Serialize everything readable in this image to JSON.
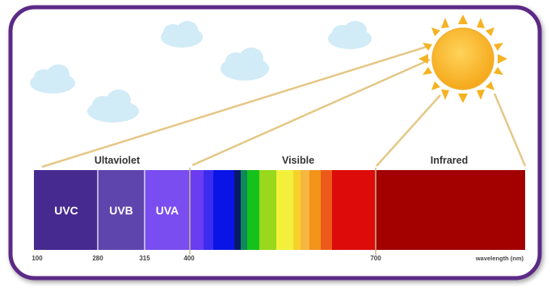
{
  "labels": {
    "ultraviolet": "Ultaviolet",
    "visible": "Visible",
    "infrared": "Infrared"
  },
  "bands": {
    "uvc": "UVC",
    "uvb": "UVB",
    "uva": "UVA"
  },
  "ticks": [
    "100",
    "280",
    "315",
    "400",
    "700"
  ],
  "axis_label": "wavelength (nm)",
  "colors": {
    "frame": "#5b2a86",
    "uvc": "#472a8f",
    "uvb": "#5e45ad",
    "uva": "#7a4df0",
    "infrared": "#a30000",
    "sun": "#f5b223",
    "ray": "#e2c27a",
    "cloud": "#cde9f7"
  },
  "icons": [
    "sun-icon",
    "cloud-icon"
  ]
}
